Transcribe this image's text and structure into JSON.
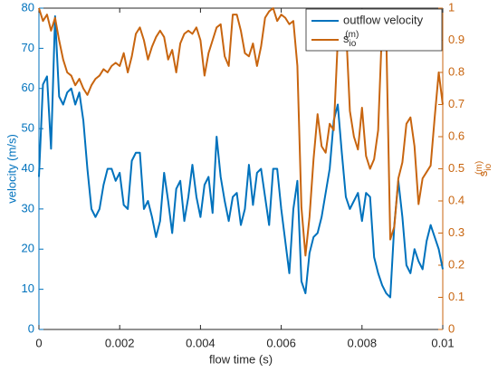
{
  "chart_data": {
    "type": "line",
    "xlabel": "flow time (s)",
    "ylabel": "velocity (m/s)",
    "y2label": {
      "base": "s",
      "sub": "io",
      "sup": "(m)"
    },
    "x": [
      0,
      0.0001,
      0.0002,
      0.0003,
      0.0004,
      0.0005,
      0.0006,
      0.0007,
      0.0008,
      0.0009,
      0.001,
      0.0011,
      0.0012,
      0.0013,
      0.0014,
      0.0015,
      0.0016,
      0.0017,
      0.0018,
      0.0019,
      0.002,
      0.0021,
      0.0022,
      0.0023,
      0.0024,
      0.0025,
      0.0026,
      0.0027,
      0.0028,
      0.0029,
      0.003,
      0.0031,
      0.0032,
      0.0033,
      0.0034,
      0.0035,
      0.0036,
      0.0037,
      0.0038,
      0.0039,
      0.004,
      0.0041,
      0.0042,
      0.0043,
      0.0044,
      0.0045,
      0.0046,
      0.0047,
      0.0048,
      0.0049,
      0.005,
      0.0051,
      0.0052,
      0.0053,
      0.0054,
      0.0055,
      0.0056,
      0.0057,
      0.0058,
      0.0059,
      0.006,
      0.0061,
      0.0062,
      0.0063,
      0.0064,
      0.0065,
      0.0066,
      0.0067,
      0.0068,
      0.0069,
      0.007,
      0.0071,
      0.0072,
      0.0073,
      0.0074,
      0.0075,
      0.0076,
      0.0077,
      0.0078,
      0.0079,
      0.008,
      0.0081,
      0.0082,
      0.0083,
      0.0084,
      0.0085,
      0.0086,
      0.0087,
      0.0088,
      0.0089,
      0.009,
      0.0091,
      0.0092,
      0.0093,
      0.0094,
      0.0095,
      0.0096,
      0.0097,
      0.0098,
      0.0099,
      0.01
    ],
    "series": [
      {
        "name": "outflow velocity",
        "color": "#0072bd",
        "axis": "y",
        "values": [
          38,
          61,
          63,
          45,
          78,
          58,
          56,
          59,
          60,
          56,
          59,
          52,
          40,
          30,
          28,
          30,
          36,
          40,
          40,
          37,
          39,
          31,
          30,
          42,
          44,
          44,
          30,
          32,
          28,
          23,
          27,
          39,
          32,
          24,
          35,
          37,
          27,
          33,
          41,
          33,
          28,
          36,
          38,
          29,
          48,
          38,
          32,
          27,
          33,
          34,
          26,
          30,
          41,
          31,
          39,
          40,
          33,
          26,
          40,
          40,
          30,
          22,
          14,
          30,
          37,
          12,
          9,
          19,
          23,
          24,
          28,
          34,
          40,
          52,
          56,
          44,
          33,
          30,
          32,
          34,
          27,
          34,
          33,
          18,
          14,
          11,
          9,
          8,
          26,
          37,
          28,
          16,
          14,
          20,
          17,
          15,
          22,
          26,
          23,
          20,
          15
        ]
      },
      {
        "name": {
          "base": "s",
          "sub": "io",
          "sup": "(m)"
        },
        "color": "#c8650f",
        "axis": "y2",
        "values": [
          1.0,
          0.96,
          0.98,
          0.93,
          0.97,
          0.9,
          0.84,
          0.8,
          0.79,
          0.76,
          0.78,
          0.75,
          0.73,
          0.76,
          0.78,
          0.79,
          0.81,
          0.8,
          0.82,
          0.83,
          0.82,
          0.86,
          0.8,
          0.85,
          0.92,
          0.94,
          0.9,
          0.84,
          0.88,
          0.91,
          0.93,
          0.91,
          0.84,
          0.87,
          0.8,
          0.89,
          0.92,
          0.93,
          0.92,
          0.94,
          0.9,
          0.79,
          0.86,
          0.9,
          0.94,
          0.95,
          0.85,
          0.82,
          0.98,
          0.98,
          0.93,
          0.86,
          0.85,
          0.89,
          0.82,
          0.88,
          0.97,
          0.99,
          1.0,
          0.96,
          0.98,
          0.97,
          0.95,
          0.96,
          0.82,
          0.38,
          0.23,
          0.35,
          0.53,
          0.67,
          0.57,
          0.55,
          0.64,
          0.62,
          0.9,
          0.99,
          0.95,
          0.68,
          0.6,
          0.56,
          0.69,
          0.54,
          0.5,
          0.53,
          0.62,
          0.95,
          0.92,
          0.28,
          0.32,
          0.47,
          0.52,
          0.64,
          0.66,
          0.57,
          0.39,
          0.47,
          0.49,
          0.51,
          0.66,
          0.8,
          0.7
        ]
      }
    ],
    "xlim": [
      0,
      0.01
    ],
    "xticks": [
      0,
      0.002,
      0.004,
      0.006,
      0.008,
      0.01
    ],
    "ylim": [
      0,
      80
    ],
    "yticks": [
      0,
      10,
      20,
      30,
      40,
      50,
      60,
      70,
      80
    ],
    "y2lim": [
      0,
      1
    ],
    "y2ticks": [
      0,
      0.1,
      0.2,
      0.3,
      0.4,
      0.5,
      0.6,
      0.7,
      0.8,
      0.9,
      1
    ],
    "legend": "upper right",
    "grid": false
  }
}
